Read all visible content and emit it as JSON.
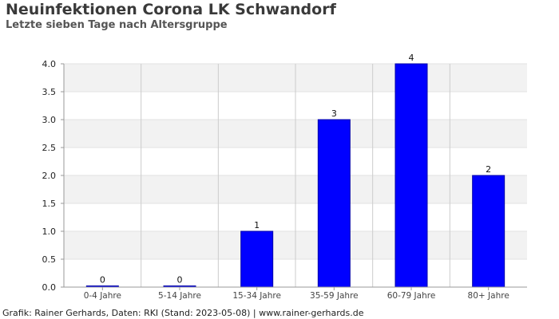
{
  "header": {
    "title": "Neuinfektionen Corona LK Schwandorf",
    "subtitle": "Letzte sieben Tage nach Altersgruppe"
  },
  "footer": {
    "text": "Grafik: Rainer Gerhards, Daten: RKI (Stand: 2023-05-08) | www.rainer-gerhards.de"
  },
  "chart_data": {
    "type": "bar",
    "title": "Neuinfektionen Corona LK Schwandorf",
    "subtitle": "Letzte sieben Tage nach Altersgruppe",
    "xlabel": "",
    "ylabel": "",
    "categories": [
      "0-4 Jahre",
      "5-14 Jahre",
      "15-34 Jahre",
      "35-59 Jahre",
      "60-79 Jahre",
      "80+ Jahre"
    ],
    "values": [
      0,
      0,
      1,
      3,
      4,
      2
    ],
    "data_labels": [
      "0",
      "0",
      "1",
      "3",
      "4",
      "2"
    ],
    "ylim": [
      0,
      4
    ],
    "yticks": [
      "0.0",
      "0.5",
      "1.0",
      "1.5",
      "2.0",
      "2.5",
      "3.0",
      "3.5",
      "4.0"
    ],
    "grid": true,
    "legend": "none",
    "colors": {
      "bar": "#0000ff",
      "bar_stroke": "#0000aa",
      "band": "#f2f2f2",
      "grid": "#cccccc",
      "axis": "#999999"
    }
  }
}
